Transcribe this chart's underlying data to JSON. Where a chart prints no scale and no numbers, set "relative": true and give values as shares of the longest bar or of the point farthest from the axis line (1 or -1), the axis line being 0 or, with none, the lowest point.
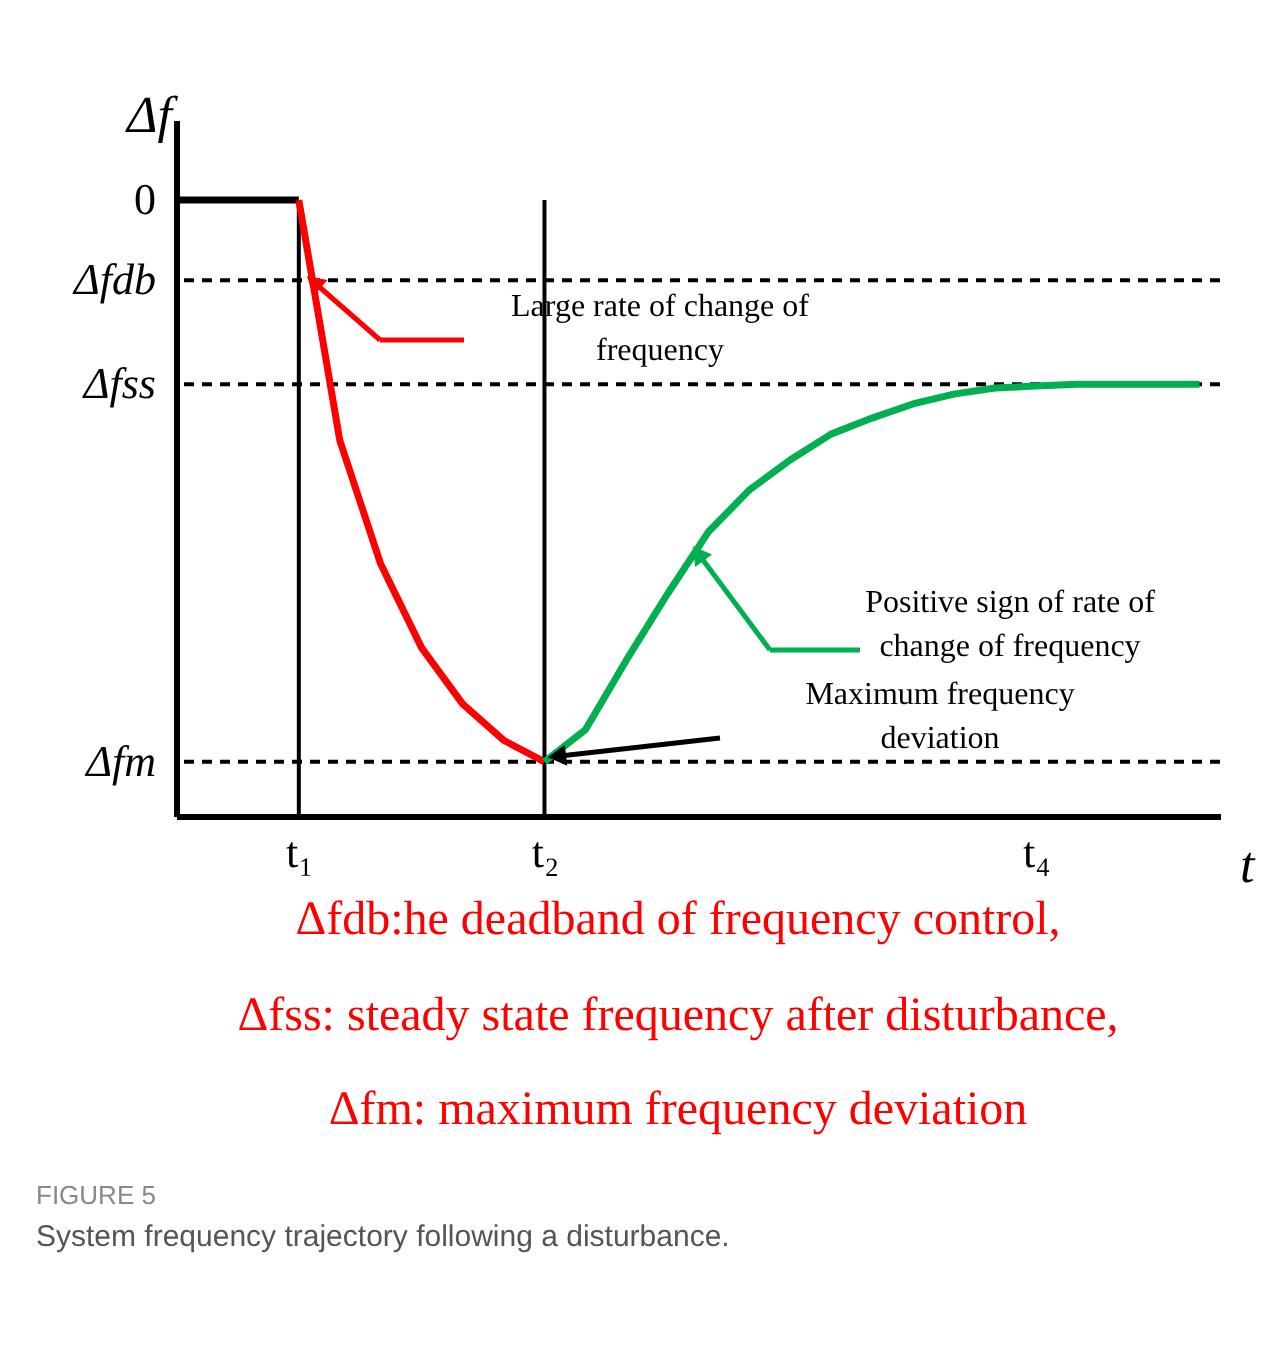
{
  "chart_data": {
    "type": "line",
    "relative": true,
    "title": "FIGURE 5",
    "subtitle": "System frequency trajectory following a disturbance.",
    "xlabel": "t",
    "ylabel": "Δf",
    "categories": [
      null,
      null,
      null,
      "t₁",
      null,
      null,
      null,
      null,
      null,
      "t₂",
      null,
      null,
      null,
      null,
      null,
      null,
      null,
      null,
      null,
      null,
      null,
      "t₄",
      null,
      null,
      null,
      null
    ],
    "series": [
      {
        "color": "#000000",
        "values": [
          1,
          1,
          1,
          1,
          null,
          null,
          null,
          null,
          null,
          null,
          null,
          null,
          null,
          null,
          null,
          null,
          null,
          null,
          null,
          null,
          null,
          null,
          null,
          null,
          null,
          null
        ]
      },
      {
        "color": "#ff0000",
        "values": [
          null,
          null,
          null,
          1,
          0.61,
          0.409,
          0.273,
          0.182,
          0.123,
          0.088,
          null,
          null,
          null,
          null,
          null,
          null,
          null,
          null,
          null,
          null,
          null,
          null,
          null,
          null,
          null,
          null
        ]
      },
      {
        "color": "#00b050",
        "values": [
          null,
          null,
          null,
          null,
          null,
          null,
          null,
          null,
          null,
          0.088,
          0.14,
          0.253,
          0.36,
          0.461,
          0.529,
          0.578,
          0.62,
          0.646,
          0.669,
          0.685,
          0.695,
          0.698,
          0.701,
          0.701,
          0.701,
          0.701
        ]
      }
    ],
    "ref_lines": [
      {
        "axis": "y",
        "value": 0.87,
        "label": "Δfdb",
        "line_style": "dashed",
        "color": "#000000"
      },
      {
        "axis": "y",
        "value": 0.701,
        "label": "Δfss",
        "line_style": "dashed",
        "color": "#000000"
      },
      {
        "axis": "y",
        "value": 0.088,
        "label": "Δfm",
        "line_style": "dashed",
        "color": "#000000"
      },
      {
        "axis": "x",
        "value": "t₁",
        "line_style": "solid",
        "color": "#000000"
      },
      {
        "axis": "x",
        "value": "t₂",
        "line_style": "solid",
        "color": "#000000"
      }
    ],
    "annotations": [
      "0",
      "Large rate of change of frequency",
      "Positive sign of rate of change of frequency",
      "Maximum frequency deviation",
      "Δfdb:he deadband of frequency control,",
      "Δfss: steady state frequency after disturbance,",
      "Δfm: maximum frequency deviation"
    ],
    "grid": false
  }
}
